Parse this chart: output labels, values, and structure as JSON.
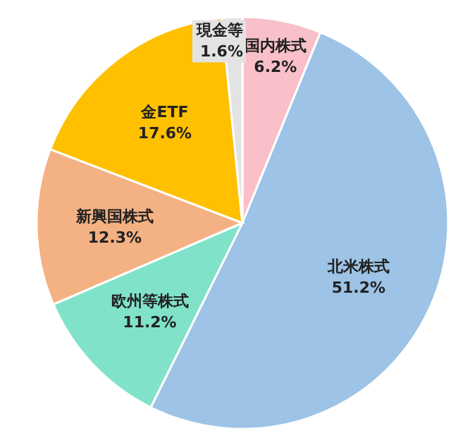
{
  "chart_data": {
    "type": "pie",
    "categories": [
      "国内株式",
      "北米株式",
      "欧州等株式",
      "新興国株式",
      "金ETF",
      "現金等"
    ],
    "values": [
      6.2,
      51.2,
      11.2,
      12.3,
      17.6,
      1.6
    ],
    "value_labels": [
      "6.2%",
      "51.2%",
      "11.2%",
      "12.3%",
      "17.6%",
      "1.6%"
    ],
    "colors": [
      "#f9c0c9",
      "#9dc3e6",
      "#80e3c9",
      "#f4b183",
      "#ffc000",
      "#e3e3e3"
    ]
  }
}
